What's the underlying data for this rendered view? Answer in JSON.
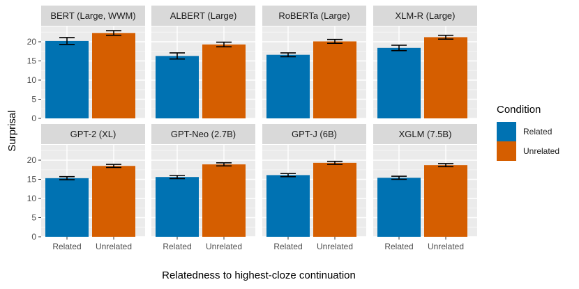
{
  "chart_data": {
    "type": "bar",
    "xlabel": "Relatedness to highest-cloze continuation",
    "ylabel": "Surprisal",
    "ylim": [
      0,
      24
    ],
    "y_ticks": [
      0,
      5,
      10,
      15,
      20
    ],
    "categories": [
      "Related",
      "Unrelated"
    ],
    "legend": {
      "title": "Condition",
      "placement": "right",
      "entries": [
        {
          "label": "Related",
          "color": "#0072B2"
        },
        {
          "label": "Unrelated",
          "color": "#D55E00"
        }
      ]
    },
    "panels": [
      {
        "title": "BERT (Large, WWM)",
        "values": [
          20.2,
          22.3
        ],
        "err": [
          0.9,
          0.6
        ]
      },
      {
        "title": "ALBERT (Large)",
        "values": [
          16.3,
          19.3
        ],
        "err": [
          0.8,
          0.6
        ]
      },
      {
        "title": "RoBERTa (Large)",
        "values": [
          16.6,
          20.1
        ],
        "err": [
          0.5,
          0.5
        ]
      },
      {
        "title": "XLM-R (Large)",
        "values": [
          18.4,
          21.2
        ],
        "err": [
          0.7,
          0.5
        ]
      },
      {
        "title": "GPT-2 (XL)",
        "values": [
          15.3,
          18.5
        ],
        "err": [
          0.4,
          0.4
        ]
      },
      {
        "title": "GPT-Neo (2.7B)",
        "values": [
          15.6,
          18.9
        ],
        "err": [
          0.4,
          0.4
        ]
      },
      {
        "title": "GPT-J (6B)",
        "values": [
          16.1,
          19.3
        ],
        "err": [
          0.4,
          0.4
        ]
      },
      {
        "title": "XGLM (7.5B)",
        "values": [
          15.4,
          18.7
        ],
        "err": [
          0.4,
          0.4
        ]
      }
    ],
    "colors": {
      "panel_bg": "#EBEBEB",
      "strip_bg": "#D9D9D9",
      "grid_major": "#FFFFFF",
      "grid_minor": "#F5F5F5"
    }
  }
}
